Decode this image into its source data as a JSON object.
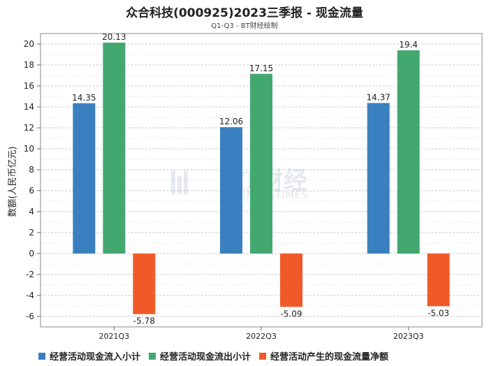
{
  "header": {
    "title": "众合科技(000925)2023三季报 - 现金流量",
    "subtitle": "Q1-Q3 - BT财经绘制"
  },
  "watermark": {
    "main": "BT财经",
    "sub": "BUSINESSTIMES"
  },
  "chart_data": {
    "type": "bar",
    "title": "众合科技(000925)2023三季报 - 现金流量",
    "subtitle": "Q1-Q3 - BT财经绘制",
    "xlabel": "",
    "ylabel": "数额(人民币亿元)",
    "ylim": [
      -7,
      21
    ],
    "yticks": [
      -6,
      -4,
      -2,
      0,
      2,
      4,
      6,
      8,
      10,
      12,
      14,
      16,
      18,
      20
    ],
    "grid": true,
    "legend_position": "bottom",
    "categories": [
      "2021Q3",
      "2022Q3",
      "2023Q3"
    ],
    "series": [
      {
        "name": "经营活动现金流入小计",
        "color": "#3a80c0",
        "values": [
          14.35,
          12.06,
          14.37
        ],
        "labels": [
          "14.35",
          "12.06",
          "14.37"
        ]
      },
      {
        "name": "经营活动现金流出小计",
        "color": "#43a870",
        "values": [
          20.13,
          17.15,
          19.4
        ],
        "labels": [
          "20.13",
          "17.15",
          "19.4"
        ]
      },
      {
        "name": "经营活动产生的现金流量净额",
        "color": "#f05a28",
        "values": [
          -5.78,
          -5.09,
          -5.03
        ],
        "labels": [
          "-5.78",
          "-5.09",
          "-5.03"
        ]
      }
    ]
  }
}
